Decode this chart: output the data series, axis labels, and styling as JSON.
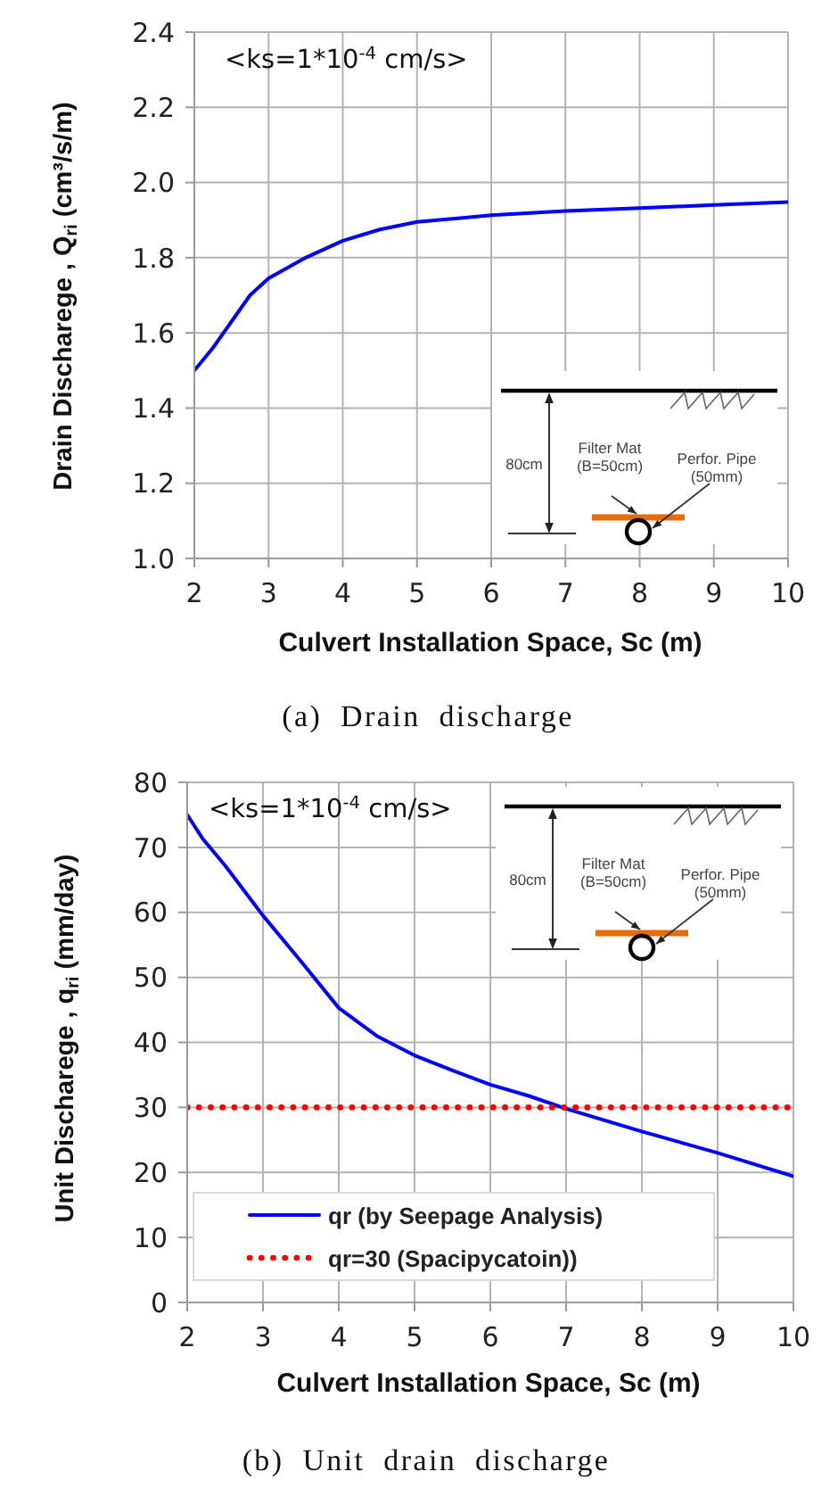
{
  "chart_data": [
    {
      "type": "line",
      "x": [
        2,
        2.25,
        2.5,
        2.75,
        3,
        3.5,
        4,
        4.5,
        5,
        6,
        7,
        8,
        9,
        10
      ],
      "series": [
        {
          "color": "#0000ff",
          "values": [
            1.5,
            1.56,
            1.63,
            1.7,
            1.745,
            1.8,
            1.845,
            1.875,
            1.895,
            1.913,
            1.924,
            1.932,
            1.94,
            1.948
          ]
        }
      ],
      "xlim": [
        2,
        10
      ],
      "xticks": [
        2,
        3,
        4,
        5,
        6,
        7,
        8,
        9,
        10
      ],
      "ylim": [
        1,
        2.4
      ],
      "yticks": [
        {
          "value": 1,
          "label": "1.0"
        },
        1.2,
        1.4,
        1.6,
        1.8,
        {
          "value": 2,
          "label": "2.0"
        },
        2.2,
        2.4
      ],
      "xlabel": "Culvert Installation Space, Sc (m)",
      "ylabel": "Drain Discharege , Q$_{ri}$ (cm³/s/m)",
      "annotations": [
        "<ks=1*10$^{-4}$ cm/s>",
        "80cm",
        "Filter Mat",
        "(B=50cm)",
        "Perfor. Pipe",
        "(50mm)",
        "(a) Drain discharge"
      ],
      "grid": true,
      "marker": "none",
      "line_style": "solid"
    },
    {
      "type": "line",
      "series": [
        {
          "name": "qr (by Seepage Analysis)",
          "color": "#0000ff",
          "x": [
            2,
            2.2,
            2.5,
            3,
            3.5,
            4,
            4.5,
            5,
            5.5,
            6,
            6.5,
            7,
            8,
            9,
            10
          ],
          "values": [
            75,
            71.4,
            67.2,
            59.5,
            52.5,
            45.3,
            41,
            38,
            35.7,
            33.5,
            31.8,
            29.8,
            26.3,
            23,
            19.4
          ]
        },
        {
          "name": "qr=30 (Spacipycatoin))",
          "color": "#ff0000",
          "x": [
            2,
            10
          ],
          "values": [
            30,
            30
          ],
          "line_style": "dotted"
        }
      ],
      "xlim": [
        2,
        10
      ],
      "xticks": [
        2,
        3,
        4,
        5,
        6,
        7,
        8,
        9,
        10
      ],
      "ylim": [
        0,
        80
      ],
      "yticks": [
        0,
        10,
        20,
        30,
        40,
        50,
        60,
        70,
        80
      ],
      "xlabel": "Culvert Installation Space, Sc (m)",
      "ylabel": "Unit Discharege , q$_{ri}$ (mm/day)",
      "annotations": [
        "<ks=1*10$^{-4}$ cm/s>",
        "80cm",
        "Filter Mat",
        "(B=50cm)",
        "Perfor. Pipe",
        "(50mm)",
        "(b) Unit drain discharge"
      ],
      "grid": true,
      "marker": "none",
      "line_style": "solid",
      "legend": "bottom left"
    }
  ]
}
